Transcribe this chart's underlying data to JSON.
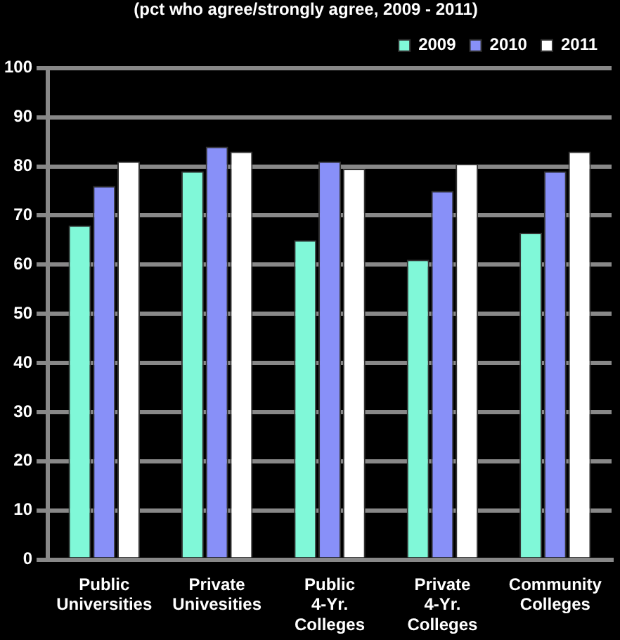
{
  "chart_data": {
    "type": "bar",
    "title": "(pct who agree/strongly agree, 2009 - 2011)",
    "categories": [
      "Public Universities",
      "Private Univesities",
      "Public 4-Yr. Colleges",
      "Private 4-Yr. Colleges",
      "Community Colleges"
    ],
    "series": [
      {
        "name": "2009",
        "color": "#80f8d8",
        "values": [
          68,
          79,
          65,
          61,
          66.5
        ]
      },
      {
        "name": "2010",
        "color": "#8890f8",
        "values": [
          76,
          84,
          81,
          75,
          79
        ]
      },
      {
        "name": "2011",
        "color": "#ffffff",
        "values": [
          81,
          83,
          79.5,
          80.5,
          83
        ]
      }
    ],
    "ylim": [
      0,
      100
    ],
    "yticks": [
      0,
      10,
      20,
      30,
      40,
      50,
      60,
      70,
      80,
      90,
      100
    ],
    "grid": "y",
    "legend": "top right"
  }
}
